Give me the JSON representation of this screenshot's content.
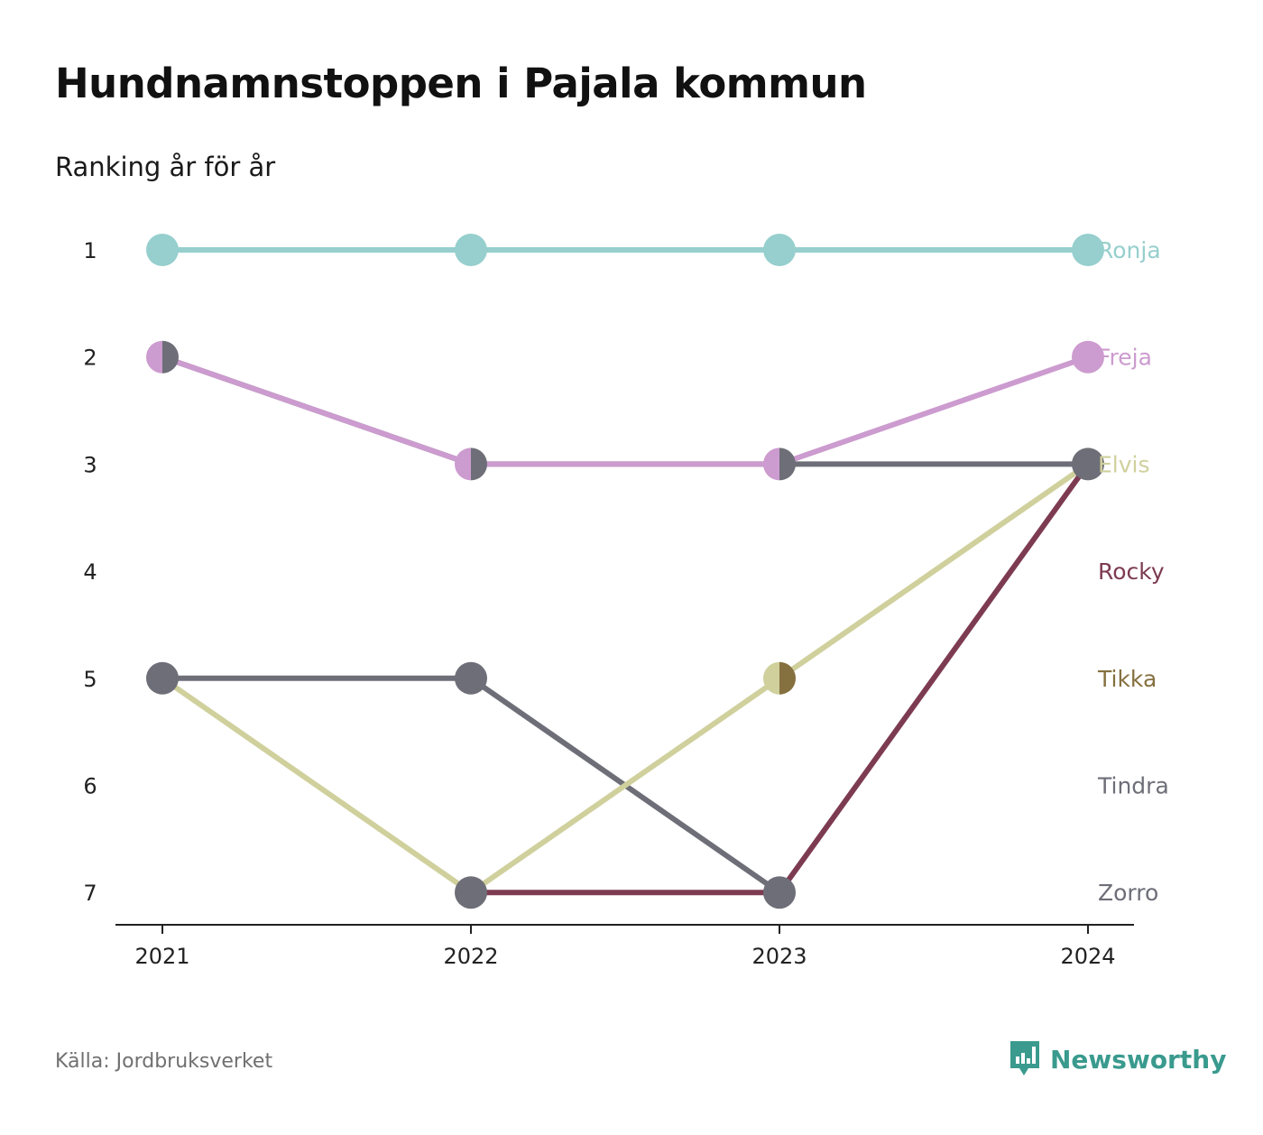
{
  "title": "Hundnamnstoppen i Pajala kommun",
  "subtitle": "Ranking år för år",
  "source": "Källa: Jordbruksverket",
  "brand": {
    "name": "Newsworthy",
    "logo_icon": "newsworthy-logo-icon",
    "color": "#3a9a8e"
  },
  "chart_data": {
    "type": "line",
    "x": [
      "2021",
      "2022",
      "2023",
      "2024"
    ],
    "y_ticks": [
      "1",
      "2",
      "3",
      "4",
      "5",
      "6",
      "7"
    ],
    "ylim": [
      1,
      7
    ],
    "y_inverted": true,
    "grid": false,
    "legend": "direct labels at right end",
    "series": [
      {
        "name": "Ronja",
        "color": "#96cfcd",
        "ranks": [
          1,
          1,
          1,
          1
        ]
      },
      {
        "name": "Freja",
        "color": "#cc9bcf",
        "ranks": [
          2,
          3,
          3,
          2
        ]
      },
      {
        "name": "Elvis",
        "color": "#cfd09c",
        "ranks": [
          5,
          7,
          5,
          3
        ]
      },
      {
        "name": "Rocky",
        "color": "#7d3b52",
        "ranks": [
          null,
          7,
          7,
          3
        ]
      },
      {
        "name": "Tikka",
        "color": "#85703f",
        "ranks": [
          null,
          null,
          5,
          null
        ]
      },
      {
        "name": "Tindra",
        "color": "#6e6e78",
        "ranks": [
          2,
          3,
          3,
          3
        ]
      },
      {
        "name": "Zorro",
        "color": "#6e6e78",
        "ranks": [
          5,
          5,
          7,
          null
        ]
      }
    ],
    "labels": [
      {
        "name": "Ronja",
        "color": "#96cfcd",
        "rank": 1
      },
      {
        "name": "Freja",
        "color": "#cc9bcf",
        "rank": 2
      },
      {
        "name": "Elvis",
        "color": "#cfd09c",
        "rank": 3
      },
      {
        "name": "Rocky",
        "color": "#7d3b52",
        "rank": 4
      },
      {
        "name": "Tikka",
        "color": "#85703f",
        "rank": 5
      },
      {
        "name": "Tindra",
        "color": "#6e6e78",
        "rank": 6
      },
      {
        "name": "Zorro",
        "color": "#6e6e78",
        "rank": 7
      }
    ],
    "points": [
      {
        "x": "2021",
        "rank": 1,
        "colors": [
          "#96cfcd"
        ]
      },
      {
        "x": "2022",
        "rank": 1,
        "colors": [
          "#96cfcd"
        ]
      },
      {
        "x": "2023",
        "rank": 1,
        "colors": [
          "#96cfcd"
        ]
      },
      {
        "x": "2024",
        "rank": 1,
        "colors": [
          "#96cfcd"
        ]
      },
      {
        "x": "2021",
        "rank": 2,
        "colors": [
          "#cc9bcf",
          "#6e6e78"
        ]
      },
      {
        "x": "2022",
        "rank": 3,
        "colors": [
          "#cc9bcf",
          "#6e6e78"
        ]
      },
      {
        "x": "2023",
        "rank": 3,
        "colors": [
          "#cc9bcf",
          "#6e6e78"
        ]
      },
      {
        "x": "2024",
        "rank": 2,
        "colors": [
          "#cc9bcf"
        ]
      },
      {
        "x": "2024",
        "rank": 3,
        "colors": [
          "#6e6e78"
        ]
      },
      {
        "x": "2021",
        "rank": 5,
        "colors": [
          "#6e6e78"
        ]
      },
      {
        "x": "2022",
        "rank": 5,
        "colors": [
          "#6e6e78"
        ]
      },
      {
        "x": "2023",
        "rank": 5,
        "colors": [
          "#cfd09c",
          "#85703f"
        ]
      },
      {
        "x": "2022",
        "rank": 7,
        "colors": [
          "#6e6e78"
        ]
      },
      {
        "x": "2023",
        "rank": 7,
        "colors": [
          "#6e6e78"
        ]
      }
    ]
  }
}
